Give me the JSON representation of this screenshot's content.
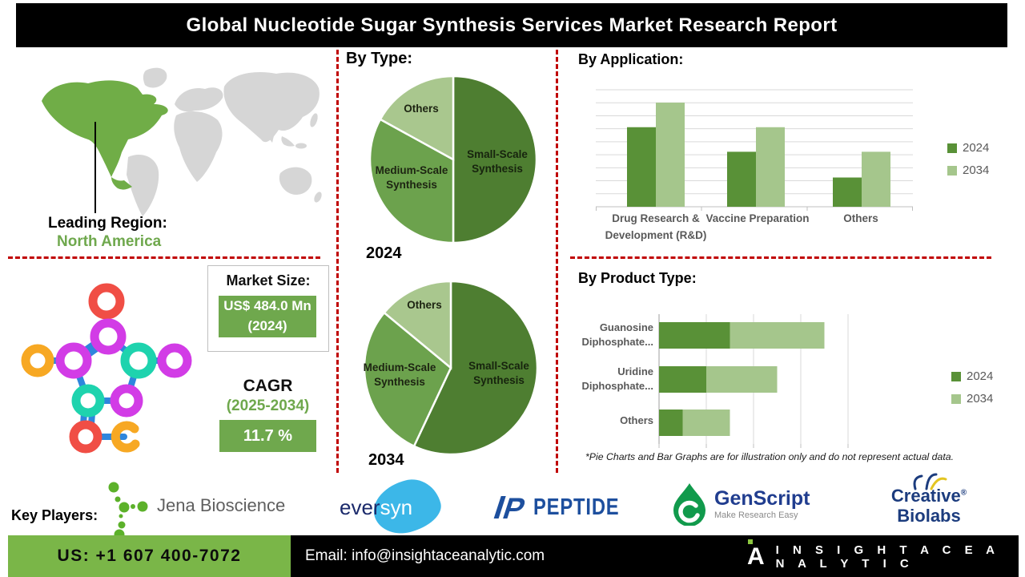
{
  "title": "Global Nucleotide Sugar Synthesis Services Market Research Report",
  "sections": {
    "by_type": "By Type:",
    "by_application": "By Application:",
    "by_product_type": "By Product Type:"
  },
  "left_panel": {
    "leading_region_label": "Leading Region:",
    "leading_region_value": "North America",
    "market_size_label": "Market Size:",
    "market_size_value": "US$ 484.0 Mn (2024)",
    "cagr_label": "CAGR",
    "cagr_period": "(2025-2034)",
    "cagr_value": "11.7 %"
  },
  "footnote": "*Pie Charts and Bar Graphs are for illustration only and do not represent actual data.",
  "key_players": {
    "label": "Key Players:",
    "jena": {
      "text": "Jena Bioscience"
    },
    "eversyn": {
      "left": "ever",
      "right": "syn"
    },
    "peptide": {
      "text": "PEPTIDE",
      "icon_letter": "P"
    },
    "genscript": {
      "text": "GenScript",
      "tagline": "Make Research Easy"
    },
    "creative": {
      "line1": "Creative",
      "reg": "®",
      "line2": "Biolabs"
    }
  },
  "footer": {
    "phone": "US: +1 607 400-7072",
    "email": "Email: info@insightaceanalytic.com",
    "brand": "I N S I G H T   A C E   A N A L Y T I C",
    "brand_mark": "A"
  },
  "colors": {
    "dark_green_slice": "#4e7e31",
    "mid_green_slice": "#6ca24d",
    "light_green_slice": "#a9c78e",
    "series_2024": "#599137",
    "series_2034": "#a5c68c",
    "accent_green": "#6fa84d",
    "footer_green": "#7ab648",
    "dashed_red": "#c00000",
    "map_gray": "#d6d6d6",
    "map_highlight": "#70ad47"
  },
  "chart_data": [
    {
      "id": "by-type-2024",
      "type": "pie",
      "year_label": "2024",
      "labels": [
        "Small-Scale Synthesis",
        "Medium-Scale Synthesis",
        "Others"
      ],
      "values_pct": [
        50,
        33,
        17
      ],
      "colors": [
        "#4e7e31",
        "#6ca24d",
        "#a9c78e"
      ],
      "note": "illustrative only"
    },
    {
      "id": "by-type-2034",
      "type": "pie",
      "year_label": "2034",
      "labels": [
        "Small-Scale Synthesis",
        "Medium-Scale Synthesis",
        "Others"
      ],
      "values_pct": [
        57,
        29,
        14
      ],
      "colors": [
        "#4e7e31",
        "#6ca24d",
        "#a9c78e"
      ],
      "note": "illustrative only"
    },
    {
      "id": "by-application",
      "type": "bar",
      "title": "By Application:",
      "categories": [
        "Drug Research & Development (R&D)",
        "Vaccine Preparation",
        "Others"
      ],
      "series": [
        {
          "name": "2024",
          "color": "#599137",
          "values": [
            6.8,
            4.7,
            2.5
          ]
        },
        {
          "name": "2034",
          "color": "#a5c68c",
          "values": [
            8.9,
            6.8,
            4.7
          ]
        }
      ],
      "ylim": [
        0,
        10
      ],
      "grid": true,
      "axis_tick_labels": "none (illustrative)",
      "legend_position": "right"
    },
    {
      "id": "by-product-type",
      "type": "stacked-horizontal-bar",
      "title": "By Product Type:",
      "categories": [
        "Guanosine Diphosphate...",
        "Uridine Diphosphate...",
        "Others"
      ],
      "series": [
        {
          "name": "2024",
          "color": "#599137",
          "values": [
            1.5,
            1.0,
            0.5
          ]
        },
        {
          "name": "2034",
          "color": "#a5c68c",
          "values": [
            2.0,
            1.5,
            1.0
          ]
        }
      ],
      "xlim": [
        0,
        4
      ],
      "grid": true,
      "axis_tick_labels": "none (illustrative)",
      "legend_position": "right"
    }
  ]
}
